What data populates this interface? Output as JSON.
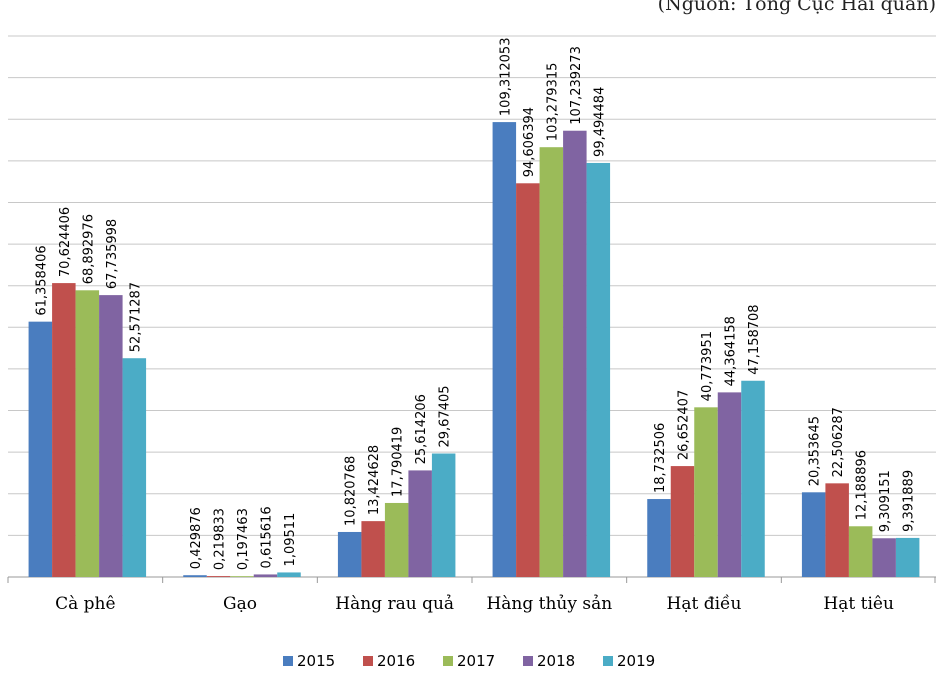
{
  "source_note": "(Nguồn: Tổng Cục Hải quan)",
  "chart_data": {
    "type": "bar",
    "categories": [
      "Cà phê",
      "Gạo",
      "Hàng rau quả",
      "Hàng thủy sản",
      "Hạt điều",
      "Hạt tiêu"
    ],
    "series": [
      {
        "name": "2015",
        "color": "#4a7dbf",
        "values": [
          61.358406,
          0.429876,
          10.820768,
          109.312053,
          18.732506,
          20.353645
        ],
        "labels": [
          "61,358406",
          "0,429876",
          "10,820768",
          "109,312053",
          "18,732506",
          "20,353645"
        ]
      },
      {
        "name": "2016",
        "color": "#c0504d",
        "values": [
          70.624406,
          0.219833,
          13.424628,
          94.606394,
          26.652407,
          22.506287
        ],
        "labels": [
          "70,624406",
          "0,219833",
          "13,424628",
          "94,606394",
          "26,652407",
          "22,506287"
        ]
      },
      {
        "name": "2017",
        "color": "#9bbb59",
        "values": [
          68.892976,
          0.197463,
          17.790419,
          103.279315,
          40.773951,
          12.188896
        ],
        "labels": [
          "68,892976",
          "0,197463",
          "17,790419",
          "103,279315",
          "40,773951",
          "12,188896"
        ]
      },
      {
        "name": "2018",
        "color": "#8064a2",
        "values": [
          67.735998,
          0.615616,
          25.614206,
          107.239273,
          44.364158,
          9.309151
        ],
        "labels": [
          "67,735998",
          "0,615616",
          "25,614206",
          "107,239273",
          "44,364158",
          "9,309151"
        ]
      },
      {
        "name": "2019",
        "color": "#4bacc6",
        "values": [
          52.571287,
          1.09511,
          29.67405,
          99.494484,
          47.158708,
          9.391889
        ],
        "labels": [
          "52,571287",
          "1,09511",
          "29,67405",
          "99,494484",
          "47,158708",
          "9,391889"
        ]
      }
    ],
    "ylim": [
      0,
      130
    ],
    "gridlines": true,
    "legend_position": "bottom",
    "data_labels": "vertical above bars"
  }
}
